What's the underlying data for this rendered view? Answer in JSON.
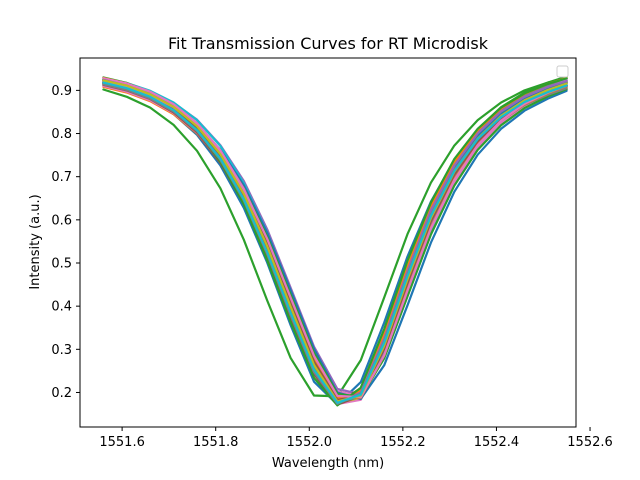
{
  "chart_data": {
    "type": "line",
    "title": "Fit Transmission Curves for RT Microdisk",
    "xlabel": "Wavelength (nm)",
    "ylabel": "Intensity (a.u.)",
    "xlim": [
      1551.51,
      1552.57
    ],
    "ylim": [
      0.12,
      0.975
    ],
    "xticks": [
      1551.6,
      1551.8,
      1552.0,
      1552.2,
      1552.4,
      1552.6
    ],
    "xtick_labels": [
      "1551.6",
      "1551.8",
      "1552.0",
      "1552.2",
      "1552.4",
      "1552.6"
    ],
    "yticks": [
      0.2,
      0.3,
      0.4,
      0.5,
      0.6,
      0.7,
      0.8,
      0.9
    ],
    "ytick_labels": [
      "0.2",
      "0.3",
      "0.4",
      "0.5",
      "0.6",
      "0.7",
      "0.8",
      "0.9"
    ],
    "grid": false,
    "legend": {
      "placement": "top-right",
      "entries": []
    },
    "x": [
      1551.56,
      1551.61,
      1551.66,
      1551.71,
      1551.76,
      1551.81,
      1551.86,
      1551.91,
      1551.96,
      1552.01,
      1552.06,
      1552.11,
      1552.16,
      1552.21,
      1552.26,
      1552.31,
      1552.36,
      1552.41,
      1552.46,
      1552.51,
      1552.55
    ],
    "series": [
      {
        "color": "#1f77b4",
        "values": [
          0.912,
          0.898,
          0.877,
          0.845,
          0.797,
          0.726,
          0.628,
          0.501,
          0.356,
          0.225,
          0.172,
          0.224,
          0.362,
          0.515,
          0.642,
          0.738,
          0.805,
          0.85,
          0.88,
          0.9,
          0.912
        ]
      },
      {
        "color": "#ff7f0e",
        "values": [
          0.908,
          0.895,
          0.875,
          0.845,
          0.8,
          0.735,
          0.645,
          0.527,
          0.39,
          0.26,
          0.182,
          0.2,
          0.31,
          0.455,
          0.589,
          0.694,
          0.77,
          0.823,
          0.86,
          0.887,
          0.905
        ]
      },
      {
        "color": "#2ca02c",
        "values": [
          0.902,
          0.885,
          0.86,
          0.82,
          0.76,
          0.673,
          0.554,
          0.413,
          0.28,
          0.193,
          0.191,
          0.275,
          0.42,
          0.567,
          0.686,
          0.772,
          0.831,
          0.872,
          0.9,
          0.918,
          0.928
        ]
      },
      {
        "color": "#d62728",
        "values": [
          0.918,
          0.906,
          0.887,
          0.858,
          0.815,
          0.752,
          0.664,
          0.549,
          0.413,
          0.279,
          0.189,
          0.192,
          0.295,
          0.447,
          0.589,
          0.699,
          0.778,
          0.832,
          0.869,
          0.895,
          0.911
        ]
      },
      {
        "color": "#9467bd",
        "values": [
          0.925,
          0.914,
          0.897,
          0.871,
          0.832,
          0.773,
          0.69,
          0.578,
          0.443,
          0.306,
          0.208,
          0.196,
          0.28,
          0.423,
          0.567,
          0.683,
          0.766,
          0.825,
          0.866,
          0.893,
          0.91
        ]
      },
      {
        "color": "#8c564b",
        "values": [
          0.915,
          0.902,
          0.881,
          0.849,
          0.801,
          0.732,
          0.637,
          0.513,
          0.373,
          0.245,
          0.176,
          0.21,
          0.336,
          0.488,
          0.622,
          0.723,
          0.796,
          0.845,
          0.879,
          0.902,
          0.916
        ]
      },
      {
        "color": "#e377c2",
        "values": [
          0.92,
          0.908,
          0.89,
          0.862,
          0.82,
          0.76,
          0.674,
          0.563,
          0.43,
          0.296,
          0.202,
          0.192,
          0.28,
          0.425,
          0.569,
          0.685,
          0.768,
          0.826,
          0.866,
          0.894,
          0.91
        ]
      },
      {
        "color": "#7f7f7f",
        "values": [
          0.922,
          0.91,
          0.891,
          0.862,
          0.818,
          0.754,
          0.663,
          0.545,
          0.406,
          0.271,
          0.184,
          0.197,
          0.312,
          0.467,
          0.608,
          0.714,
          0.79,
          0.842,
          0.878,
          0.902,
          0.917
        ]
      },
      {
        "color": "#bcbd22",
        "values": [
          0.916,
          0.904,
          0.885,
          0.856,
          0.812,
          0.749,
          0.66,
          0.543,
          0.405,
          0.268,
          0.179,
          0.188,
          0.297,
          0.45,
          0.592,
          0.7,
          0.778,
          0.832,
          0.869,
          0.895,
          0.911
        ]
      },
      {
        "color": "#17becf",
        "values": [
          0.928,
          0.917,
          0.899,
          0.872,
          0.831,
          0.771,
          0.685,
          0.571,
          0.433,
          0.295,
          0.197,
          0.19,
          0.282,
          0.43,
          0.578,
          0.695,
          0.779,
          0.838,
          0.879,
          0.906,
          0.922
        ]
      },
      {
        "color": "#1f77b4",
        "values": [
          0.925,
          0.912,
          0.892,
          0.861,
          0.815,
          0.747,
          0.652,
          0.527,
          0.385,
          0.252,
          0.177,
          0.201,
          0.326,
          0.482,
          0.622,
          0.727,
          0.801,
          0.852,
          0.887,
          0.91,
          0.924
        ]
      },
      {
        "color": "#ff7f0e",
        "values": [
          0.918,
          0.905,
          0.885,
          0.854,
          0.808,
          0.741,
          0.647,
          0.523,
          0.382,
          0.249,
          0.173,
          0.194,
          0.316,
          0.471,
          0.611,
          0.716,
          0.79,
          0.841,
          0.876,
          0.899,
          0.913
        ]
      },
      {
        "color": "#2ca02c",
        "values": [
          0.93,
          0.917,
          0.896,
          0.864,
          0.815,
          0.745,
          0.648,
          0.521,
          0.378,
          0.245,
          0.172,
          0.201,
          0.33,
          0.489,
          0.63,
          0.736,
          0.81,
          0.861,
          0.895,
          0.918,
          0.932
        ]
      },
      {
        "color": "#d62728",
        "values": [
          0.923,
          0.911,
          0.893,
          0.865,
          0.823,
          0.761,
          0.674,
          0.558,
          0.421,
          0.285,
          0.193,
          0.193,
          0.291,
          0.442,
          0.587,
          0.7,
          0.782,
          0.839,
          0.878,
          0.904,
          0.92
        ]
      },
      {
        "color": "#9467bd",
        "values": [
          0.912,
          0.9,
          0.881,
          0.853,
          0.811,
          0.75,
          0.663,
          0.549,
          0.413,
          0.279,
          0.187,
          0.187,
          0.286,
          0.438,
          0.583,
          0.694,
          0.774,
          0.829,
          0.867,
          0.892,
          0.908
        ]
      },
      {
        "color": "#8c564b",
        "values": [
          0.918,
          0.905,
          0.884,
          0.852,
          0.804,
          0.735,
          0.639,
          0.514,
          0.373,
          0.243,
          0.172,
          0.201,
          0.327,
          0.483,
          0.62,
          0.724,
          0.797,
          0.847,
          0.881,
          0.904,
          0.918
        ]
      },
      {
        "color": "#e377c2",
        "values": [
          0.91,
          0.897,
          0.877,
          0.847,
          0.802,
          0.736,
          0.643,
          0.523,
          0.384,
          0.253,
          0.173,
          0.183,
          0.293,
          0.447,
          0.588,
          0.696,
          0.773,
          0.826,
          0.862,
          0.887,
          0.902
        ]
      },
      {
        "color": "#7f7f7f",
        "values": [
          0.926,
          0.913,
          0.893,
          0.862,
          0.816,
          0.748,
          0.653,
          0.528,
          0.386,
          0.253,
          0.178,
          0.203,
          0.329,
          0.486,
          0.625,
          0.73,
          0.804,
          0.855,
          0.89,
          0.913,
          0.927
        ]
      },
      {
        "color": "#bcbd22",
        "values": [
          0.92,
          0.908,
          0.888,
          0.859,
          0.814,
          0.749,
          0.656,
          0.535,
          0.395,
          0.26,
          0.175,
          0.188,
          0.304,
          0.46,
          0.601,
          0.707,
          0.783,
          0.835,
          0.871,
          0.896,
          0.911
        ]
      },
      {
        "color": "#17becf",
        "values": [
          0.924,
          0.911,
          0.891,
          0.86,
          0.813,
          0.745,
          0.65,
          0.525,
          0.384,
          0.251,
          0.176,
          0.2,
          0.324,
          0.48,
          0.62,
          0.725,
          0.799,
          0.85,
          0.885,
          0.908,
          0.922
        ]
      },
      {
        "color": "#1f77b4",
        "values": [
          0.915,
          0.904,
          0.886,
          0.86,
          0.82,
          0.762,
          0.68,
          0.57,
          0.437,
          0.301,
          0.2,
          0.185,
          0.263,
          0.402,
          0.547,
          0.665,
          0.751,
          0.811,
          0.853,
          0.881,
          0.899
        ]
      },
      {
        "color": "#ff7f0e",
        "values": [
          0.929,
          0.916,
          0.895,
          0.863,
          0.815,
          0.745,
          0.649,
          0.524,
          0.383,
          0.251,
          0.178,
          0.205,
          0.334,
          0.491,
          0.63,
          0.734,
          0.808,
          0.858,
          0.892,
          0.915,
          0.929
        ]
      },
      {
        "color": "#2ca02c",
        "values": [
          0.917,
          0.905,
          0.887,
          0.86,
          0.819,
          0.759,
          0.674,
          0.561,
          0.427,
          0.292,
          0.197,
          0.189,
          0.279,
          0.423,
          0.566,
          0.679,
          0.762,
          0.819,
          0.859,
          0.886,
          0.903
        ]
      },
      {
        "color": "#d62728",
        "values": [
          0.921,
          0.908,
          0.888,
          0.858,
          0.812,
          0.746,
          0.653,
          0.531,
          0.392,
          0.26,
          0.181,
          0.198,
          0.316,
          0.47,
          0.609,
          0.713,
          0.787,
          0.838,
          0.873,
          0.896,
          0.911
        ]
      },
      {
        "color": "#9467bd",
        "values": [
          0.926,
          0.914,
          0.895,
          0.867,
          0.824,
          0.761,
          0.673,
          0.555,
          0.417,
          0.281,
          0.188,
          0.19,
          0.294,
          0.447,
          0.592,
          0.703,
          0.783,
          0.839,
          0.877,
          0.903,
          0.919
        ]
      },
      {
        "color": "#8c564b",
        "values": [
          0.913,
          0.9,
          0.88,
          0.849,
          0.803,
          0.736,
          0.641,
          0.519,
          0.379,
          0.248,
          0.172,
          0.192,
          0.311,
          0.465,
          0.604,
          0.71,
          0.784,
          0.835,
          0.87,
          0.893,
          0.908
        ]
      },
      {
        "color": "#e377c2",
        "values": [
          0.928,
          0.916,
          0.897,
          0.868,
          0.824,
          0.761,
          0.671,
          0.553,
          0.413,
          0.276,
          0.185,
          0.192,
          0.302,
          0.458,
          0.603,
          0.713,
          0.791,
          0.845,
          0.882,
          0.907,
          0.923
        ]
      },
      {
        "color": "#7f7f7f",
        "values": [
          0.914,
          0.901,
          0.881,
          0.851,
          0.806,
          0.74,
          0.648,
          0.528,
          0.39,
          0.258,
          0.178,
          0.19,
          0.304,
          0.456,
          0.596,
          0.702,
          0.778,
          0.83,
          0.866,
          0.89,
          0.905
        ]
      },
      {
        "color": "#bcbd22",
        "values": [
          0.922,
          0.909,
          0.889,
          0.858,
          0.812,
          0.744,
          0.649,
          0.524,
          0.382,
          0.249,
          0.174,
          0.199,
          0.323,
          0.48,
          0.619,
          0.724,
          0.798,
          0.848,
          0.883,
          0.906,
          0.92
        ]
      },
      {
        "color": "#17becf",
        "values": [
          0.919,
          0.907,
          0.888,
          0.859,
          0.815,
          0.751,
          0.661,
          0.542,
          0.404,
          0.269,
          0.18,
          0.19,
          0.301,
          0.455,
          0.598,
          0.706,
          0.783,
          0.836,
          0.873,
          0.898,
          0.913
        ]
      },
      {
        "color": "#1f77b4",
        "values": [
          0.921,
          0.908,
          0.888,
          0.857,
          0.811,
          0.744,
          0.649,
          0.526,
          0.385,
          0.252,
          0.175,
          0.198,
          0.321,
          0.477,
          0.616,
          0.721,
          0.795,
          0.845,
          0.88,
          0.903,
          0.917
        ]
      },
      {
        "color": "#ff7f0e",
        "values": [
          0.916,
          0.904,
          0.885,
          0.857,
          0.814,
          0.752,
          0.665,
          0.55,
          0.414,
          0.28,
          0.188,
          0.188,
          0.286,
          0.438,
          0.582,
          0.694,
          0.774,
          0.83,
          0.868,
          0.894,
          0.91
        ]
      },
      {
        "color": "#2ca02c",
        "values": [
          0.924,
          0.91,
          0.889,
          0.856,
          0.807,
          0.735,
          0.636,
          0.506,
          0.363,
          0.234,
          0.17,
          0.211,
          0.347,
          0.505,
          0.64,
          0.741,
          0.811,
          0.86,
          0.893,
          0.915,
          0.928
        ]
      },
      {
        "color": "#d62728",
        "values": [
          0.917,
          0.904,
          0.885,
          0.855,
          0.811,
          0.746,
          0.655,
          0.535,
          0.397,
          0.264,
          0.18,
          0.192,
          0.307,
          0.461,
          0.602,
          0.708,
          0.784,
          0.836,
          0.872,
          0.896,
          0.911
        ]
      },
      {
        "color": "#9467bd",
        "values": [
          0.924,
          0.911,
          0.89,
          0.859,
          0.812,
          0.743,
          0.647,
          0.522,
          0.38,
          0.248,
          0.174,
          0.2,
          0.325,
          0.482,
          0.622,
          0.726,
          0.8,
          0.851,
          0.885,
          0.908,
          0.922
        ]
      },
      {
        "color": "#8c564b",
        "values": [
          0.919,
          0.906,
          0.887,
          0.858,
          0.814,
          0.75,
          0.661,
          0.544,
          0.406,
          0.271,
          0.183,
          0.192,
          0.301,
          0.454,
          0.597,
          0.705,
          0.782,
          0.835,
          0.872,
          0.897,
          0.912
        ]
      },
      {
        "color": "#e377c2",
        "values": [
          0.92,
          0.908,
          0.889,
          0.861,
          0.819,
          0.757,
          0.67,
          0.556,
          0.42,
          0.285,
          0.192,
          0.189,
          0.286,
          0.436,
          0.58,
          0.692,
          0.773,
          0.83,
          0.869,
          0.895,
          0.911
        ]
      },
      {
        "color": "#7f7f7f",
        "values": [
          0.916,
          0.903,
          0.883,
          0.852,
          0.806,
          0.739,
          0.645,
          0.521,
          0.38,
          0.249,
          0.174,
          0.197,
          0.319,
          0.474,
          0.612,
          0.716,
          0.789,
          0.84,
          0.874,
          0.897,
          0.911
        ]
      },
      {
        "color": "#bcbd22",
        "values": [
          0.923,
          0.911,
          0.891,
          0.862,
          0.817,
          0.752,
          0.66,
          0.539,
          0.399,
          0.264,
          0.179,
          0.193,
          0.308,
          0.462,
          0.604,
          0.711,
          0.788,
          0.841,
          0.877,
          0.901,
          0.916
        ]
      },
      {
        "color": "#17becf",
        "values": [
          0.918,
          0.905,
          0.885,
          0.854,
          0.808,
          0.742,
          0.648,
          0.525,
          0.385,
          0.253,
          0.176,
          0.195,
          0.315,
          0.47,
          0.609,
          0.713,
          0.787,
          0.838,
          0.873,
          0.896,
          0.911
        ]
      }
    ]
  }
}
